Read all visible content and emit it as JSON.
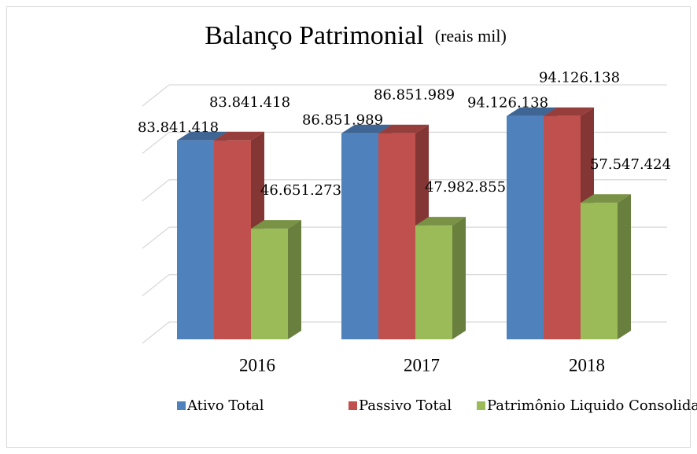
{
  "chart_data": {
    "type": "bar3d",
    "title": "Balanço Patrimonial",
    "subtitle": "(reais mil)",
    "categories": [
      "2016",
      "2017",
      "2018"
    ],
    "series": [
      {
        "name": "Ativo Total",
        "color": "#4f81bd",
        "values": [
          83841418,
          86851989,
          94126138
        ],
        "value_labels": [
          "83.841.418",
          "86.851.989",
          "94.126.138"
        ]
      },
      {
        "name": "Passivo Total",
        "color": "#c0504d",
        "values": [
          83841418,
          86851989,
          94126138
        ],
        "value_labels": [
          "83.841.418",
          "86.851.989",
          "94.126.138"
        ]
      },
      {
        "name": "Patrimônio Liquido Consolidado",
        "color": "#9bbb59",
        "values": [
          46651273,
          47982855,
          57547424
        ],
        "value_labels": [
          "46.651.273",
          "47.982.855",
          "57.547.424"
        ]
      }
    ],
    "ylim": [
      0,
      100000000
    ],
    "yticks": [
      0,
      20000000,
      40000000,
      60000000,
      80000000,
      100000000
    ],
    "grid": true,
    "legend": "bottom"
  }
}
